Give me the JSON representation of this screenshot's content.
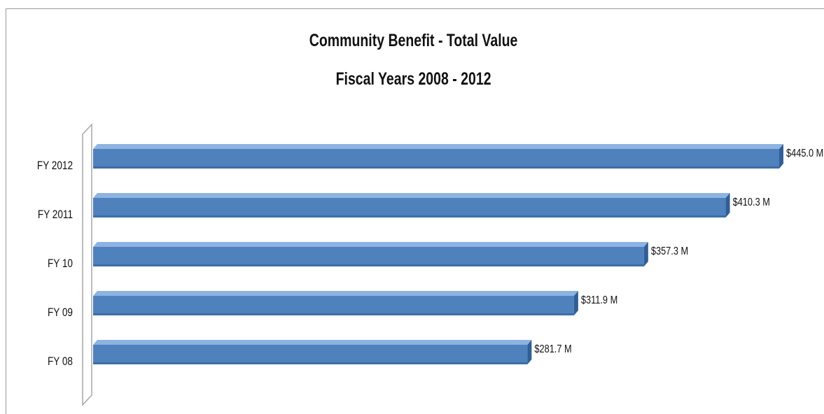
{
  "chart_data": {
    "type": "bar",
    "orientation": "horizontal",
    "title": "Community Benefit - Total Value",
    "subtitle": "Fiscal Years 2008 - 2012",
    "categories": [
      "FY 2012",
      "FY 2011",
      "FY 10",
      "FY 09",
      "FY 08"
    ],
    "values": [
      445.0,
      410.3,
      357.3,
      311.9,
      281.7
    ],
    "data_labels": [
      "$445.0 M",
      "$410.3 M",
      "$357.3 M",
      "$311.9 M",
      "$281.7 M"
    ],
    "xlim": [
      0,
      445
    ],
    "grid": false,
    "legend": "none",
    "colors": {
      "bar": "#4f81bd",
      "bar_top": "#8db3e2",
      "bar_side": "#2f5f96",
      "axis": "#a6a6a6"
    }
  }
}
